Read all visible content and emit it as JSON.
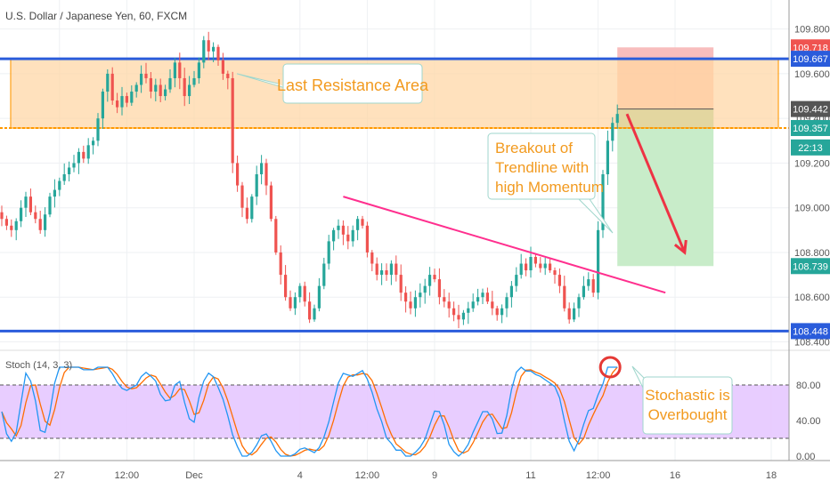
{
  "header": {
    "symbol_title": "U.S. Dollar / Japanese Yen, 60, FXCM"
  },
  "stoch_label": "Stoch (14, 3, 3)",
  "colors": {
    "up": "#26a69a",
    "down": "#ef5350",
    "blue_line": "#2a5cdb",
    "zone_fill": "#ffd8a8",
    "zone_border": "#ff9800",
    "trendline": "#ff2f8e",
    "stop_zone": "#f8bdbd",
    "stop_zone_dark": "#ffb199",
    "target_zone": "#c8ecc9",
    "stoch_k": "#2196f3",
    "stoch_d": "#ff6d00",
    "stoch_band": "#e6c8ff",
    "annotation_text": "#f29a1f",
    "callout_border": "#9fd6cc"
  },
  "annotations": {
    "resistance": "Last Resistance Area",
    "breakout": [
      "Breakout of",
      "Trendline with",
      "high Momentum"
    ],
    "stochastic": [
      "Stochastic is",
      "Overbought"
    ]
  },
  "chart_data": [
    {
      "type": "candlestick",
      "title": "U.S. Dollar / Japanese Yen, 60, FXCM",
      "ylim": [
        108.37,
        109.93
      ],
      "y_ticks": [
        108.4,
        108.6,
        108.8,
        109.0,
        109.2,
        109.4,
        109.6,
        109.8
      ],
      "y_tick_labels": [
        "108.400",
        "108.600",
        "108.800",
        "109.000",
        "109.200",
        "109.400",
        "109.600",
        "109.800"
      ],
      "x_ticks": [
        {
          "label": "27",
          "bar": 12
        },
        {
          "label": "12:00",
          "bar": 26
        },
        {
          "label": "Dec",
          "bar": 40
        },
        {
          "label": "4",
          "bar": 62
        },
        {
          "label": "12:00",
          "bar": 76
        },
        {
          "label": "9",
          "bar": 90
        },
        {
          "label": "11",
          "bar": 110
        },
        {
          "label": "12:00",
          "bar": 124
        },
        {
          "label": "16",
          "bar": 140
        },
        {
          "label": "18",
          "bar": 160
        }
      ],
      "bar_count": 164,
      "price_labels": [
        {
          "text": "109.718",
          "value": 109.718,
          "color": "#ef5350"
        },
        {
          "text": "109.667",
          "value": 109.667,
          "color": "#2a5cdb"
        },
        {
          "text": "109.442",
          "value": 109.442,
          "color": "#555555"
        },
        {
          "text": "109.357",
          "value": 109.357,
          "color": "#26a69a"
        },
        {
          "text": "22:13",
          "value": 109.27,
          "color": "#26a69a"
        },
        {
          "text": "108.739",
          "value": 108.739,
          "color": "#26a69a"
        },
        {
          "text": "108.448",
          "value": 108.448,
          "color": "#2a5cdb"
        }
      ],
      "support_level": 108.448,
      "resistance_level": 109.667,
      "resistance_zone": [
        109.357,
        109.667
      ],
      "trendline": [
        [
          71,
          109.05
        ],
        [
          138,
          108.62
        ]
      ],
      "trade": {
        "entry": 109.442,
        "stop": 109.718,
        "target": 108.739,
        "bars": [
          128,
          148
        ]
      },
      "arrow": [
        [
          130,
          109.42
        ],
        [
          142,
          108.8
        ]
      ],
      "closes": [
        108.95,
        108.92,
        108.9,
        108.94,
        109.0,
        109.05,
        108.98,
        108.95,
        108.9,
        108.97,
        109.05,
        109.08,
        109.12,
        109.15,
        109.18,
        109.2,
        109.25,
        109.22,
        109.28,
        109.3,
        109.4,
        109.52,
        109.6,
        109.48,
        109.45,
        109.5,
        109.47,
        109.52,
        109.55,
        109.6,
        109.58,
        109.52,
        109.55,
        109.5,
        109.53,
        109.58,
        109.65,
        109.58,
        109.5,
        109.55,
        109.58,
        109.65,
        109.75,
        109.7,
        109.72,
        109.66,
        109.6,
        109.58,
        109.2,
        109.1,
        109.0,
        108.95,
        109.05,
        109.15,
        109.2,
        109.1,
        108.95,
        108.8,
        108.7,
        108.6,
        108.55,
        108.6,
        108.65,
        108.58,
        108.5,
        108.55,
        108.65,
        108.75,
        108.85,
        108.9,
        108.92,
        108.88,
        108.85,
        108.9,
        108.95,
        108.92,
        108.8,
        108.75,
        108.7,
        108.72,
        108.7,
        108.75,
        108.7,
        108.62,
        108.58,
        108.55,
        108.6,
        108.62,
        108.65,
        108.7,
        108.68,
        108.6,
        108.58,
        108.55,
        108.52,
        108.5,
        108.53,
        108.55,
        108.58,
        108.6,
        108.62,
        108.58,
        108.55,
        108.52,
        108.55,
        108.6,
        108.65,
        108.7,
        108.75,
        108.72,
        108.78,
        108.75,
        108.73,
        108.75,
        108.72,
        108.7,
        108.65,
        108.55,
        108.5,
        108.55,
        108.6,
        108.65,
        108.68,
        108.62,
        108.9,
        109.15,
        109.3,
        109.38,
        109.42
      ],
      "stochastic": {
        "ylim": [
          -5,
          115
        ],
        "y_ticks": [
          0,
          40,
          80
        ],
        "y_tick_labels": [
          "0.00",
          "40.00",
          "80.00"
        ],
        "bands": [
          20,
          80
        ]
      }
    }
  ]
}
